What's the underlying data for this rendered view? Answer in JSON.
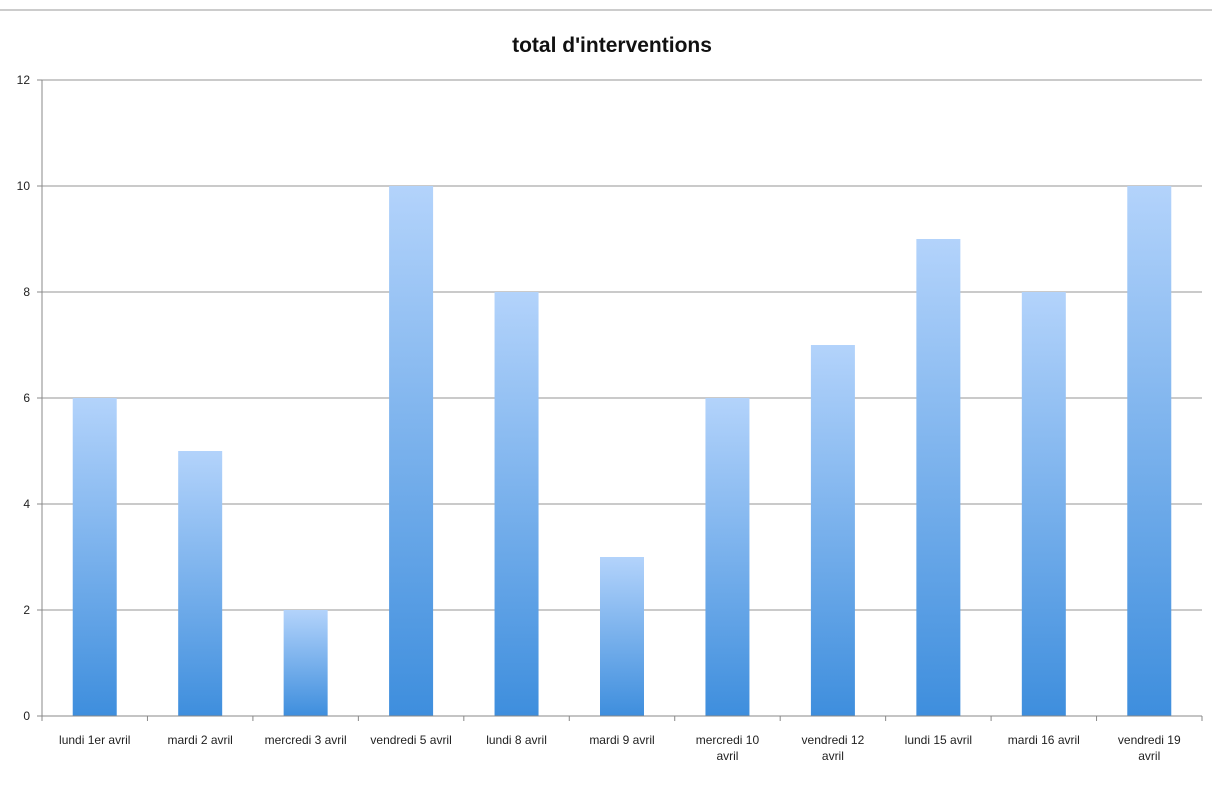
{
  "chart_data": {
    "type": "bar",
    "title": "total d'interventions",
    "xlabel": "",
    "ylabel": "",
    "categories": [
      "lundi 1er avril",
      "mardi 2 avril",
      "mercredi 3 avril",
      "vendredi 5 avril",
      "lundi 8 avril",
      "mardi 9 avril",
      "mercredi 10 avril",
      "vendredi 12 avril",
      "lundi 15 avril",
      "mardi 16 avril",
      "vendredi 19 avril"
    ],
    "values": [
      6,
      5,
      2,
      10,
      8,
      3,
      6,
      7,
      9,
      8,
      10
    ],
    "ylim": [
      0,
      12
    ],
    "yticks": [
      0,
      2,
      4,
      6,
      8,
      10,
      12
    ],
    "grid": true,
    "legend": "none",
    "colors": {
      "bar_top": "#b3d3fb",
      "bar_bottom": "#3e8edd",
      "gridline": "#aaaaaa",
      "axis": "#888888"
    }
  }
}
